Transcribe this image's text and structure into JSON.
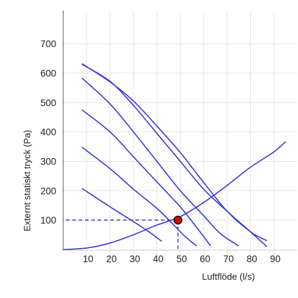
{
  "chart_data": {
    "type": "line",
    "xlabel": "Luftflöde (l/s)",
    "ylabel": "Externt statiskt tryck (Pa)",
    "x_ticks": [
      "10",
      "20",
      "30",
      "40",
      "50",
      "60",
      "70",
      "80",
      "90"
    ],
    "y_ticks": [
      "100",
      "200",
      "300",
      "400",
      "500",
      "600",
      "700"
    ],
    "xlim": [
      0,
      100
    ],
    "ylim": [
      0,
      780
    ],
    "grid": true,
    "colors": {
      "curve": "#3b3bd1",
      "grid": "#e4e4e4",
      "axis": "#555555",
      "marker_fill": "#e00000",
      "marker_stroke": "#000000"
    },
    "fan_curves": [
      {
        "points": [
          [
            8,
            632
          ],
          [
            20,
            570
          ],
          [
            30,
            505
          ],
          [
            40,
            420
          ],
          [
            50,
            330
          ],
          [
            60,
            228
          ],
          [
            70,
            130
          ],
          [
            80,
            60
          ],
          [
            87,
            30
          ]
        ]
      },
      {
        "points": [
          [
            8,
            630
          ],
          [
            20,
            572
          ],
          [
            30,
            490
          ],
          [
            40,
            395
          ],
          [
            50,
            300
          ],
          [
            60,
            205
          ],
          [
            70,
            130
          ],
          [
            80,
            60
          ],
          [
            87,
            10
          ]
        ]
      },
      {
        "points": [
          [
            8,
            583
          ],
          [
            20,
            495
          ],
          [
            30,
            400
          ],
          [
            40,
            300
          ],
          [
            50,
            200
          ],
          [
            60,
            115
          ],
          [
            67,
            55
          ],
          [
            75,
            12
          ]
        ]
      },
      {
        "points": [
          [
            8,
            475
          ],
          [
            20,
            400
          ],
          [
            30,
            315
          ],
          [
            40,
            230
          ],
          [
            50,
            145
          ],
          [
            57,
            75
          ],
          [
            63,
            12
          ]
        ]
      },
      {
        "points": [
          [
            8,
            348
          ],
          [
            20,
            275
          ],
          [
            30,
            205
          ],
          [
            40,
            140
          ],
          [
            47,
            85
          ],
          [
            52,
            45
          ],
          [
            57,
            12
          ]
        ]
      },
      {
        "points": [
          [
            8,
            208
          ],
          [
            20,
            145
          ],
          [
            30,
            95
          ],
          [
            37,
            58
          ],
          [
            42,
            28
          ]
        ]
      }
    ],
    "system_curve": {
      "points": [
        [
          0,
          0
        ],
        [
          10,
          5
        ],
        [
          20,
          22
        ],
        [
          30,
          50
        ],
        [
          40,
          83
        ],
        [
          50,
          112
        ],
        [
          60,
          160
        ],
        [
          70,
          218
        ],
        [
          80,
          280
        ],
        [
          90,
          332
        ],
        [
          95,
          367
        ]
      ]
    },
    "operating_point": {
      "x": 49,
      "y": 100
    }
  }
}
